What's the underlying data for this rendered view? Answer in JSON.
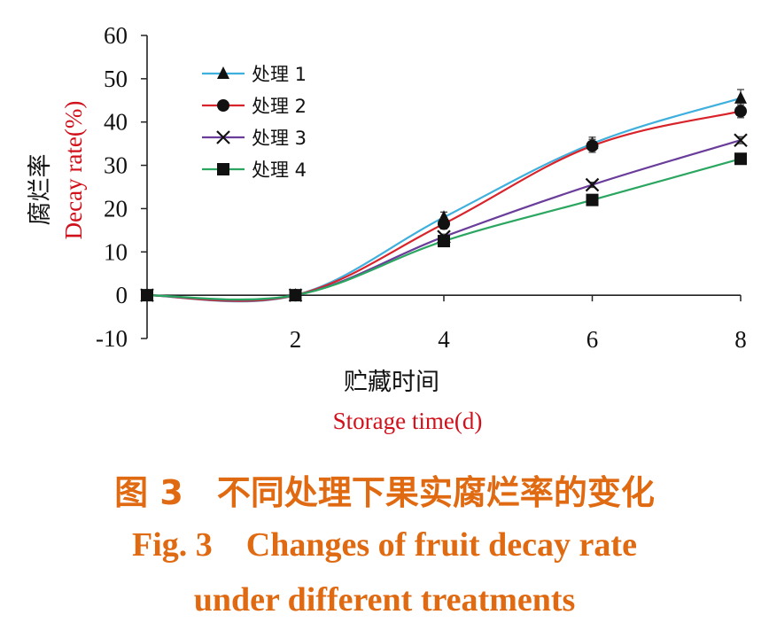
{
  "chart_data": {
    "type": "line",
    "x": [
      0,
      2,
      4,
      6,
      8
    ],
    "xticks": [
      2,
      4,
      6,
      8
    ],
    "xlim": [
      0,
      8
    ],
    "ylim": [
      -10,
      60
    ],
    "yticks": [
      -10,
      0,
      10,
      20,
      30,
      40,
      50,
      60
    ],
    "ylabel_cn": "腐烂率",
    "ylabel_en": "Decay rate(%)",
    "xlabel_cn": "贮藏时间",
    "xlabel_en": "Storage time(d)",
    "legend_position": "top-left",
    "grid": false,
    "series": [
      {
        "name": "处理 1",
        "marker": "triangle",
        "color": "#3fb0dd",
        "values": [
          0,
          0,
          18,
          35,
          45.5
        ],
        "errors": [
          0,
          0,
          1.2,
          1.5,
          2
        ]
      },
      {
        "name": "处理 2",
        "marker": "circle",
        "color": "#d8232a",
        "values": [
          0,
          0,
          16.5,
          34.5,
          42.5
        ],
        "errors": [
          0,
          0,
          1.2,
          1.5,
          1.5
        ]
      },
      {
        "name": "处理 3",
        "marker": "cross",
        "color": "#6a3d9a",
        "values": [
          0,
          0,
          13.5,
          25.5,
          35.8
        ],
        "errors": [
          0,
          0,
          0.6,
          0.6,
          0.8
        ]
      },
      {
        "name": "处理 4",
        "marker": "square",
        "color": "#2aa660",
        "values": [
          0,
          0,
          12.5,
          22,
          31.5
        ],
        "errors": [
          0,
          0,
          0.6,
          0.6,
          0.8
        ]
      }
    ]
  },
  "caption": {
    "cn": "图 3　不同处理下果实腐烂率的变化",
    "en_line1": "Fig. 3　Changes of fruit decay rate",
    "en_line2": "under different treatments"
  }
}
